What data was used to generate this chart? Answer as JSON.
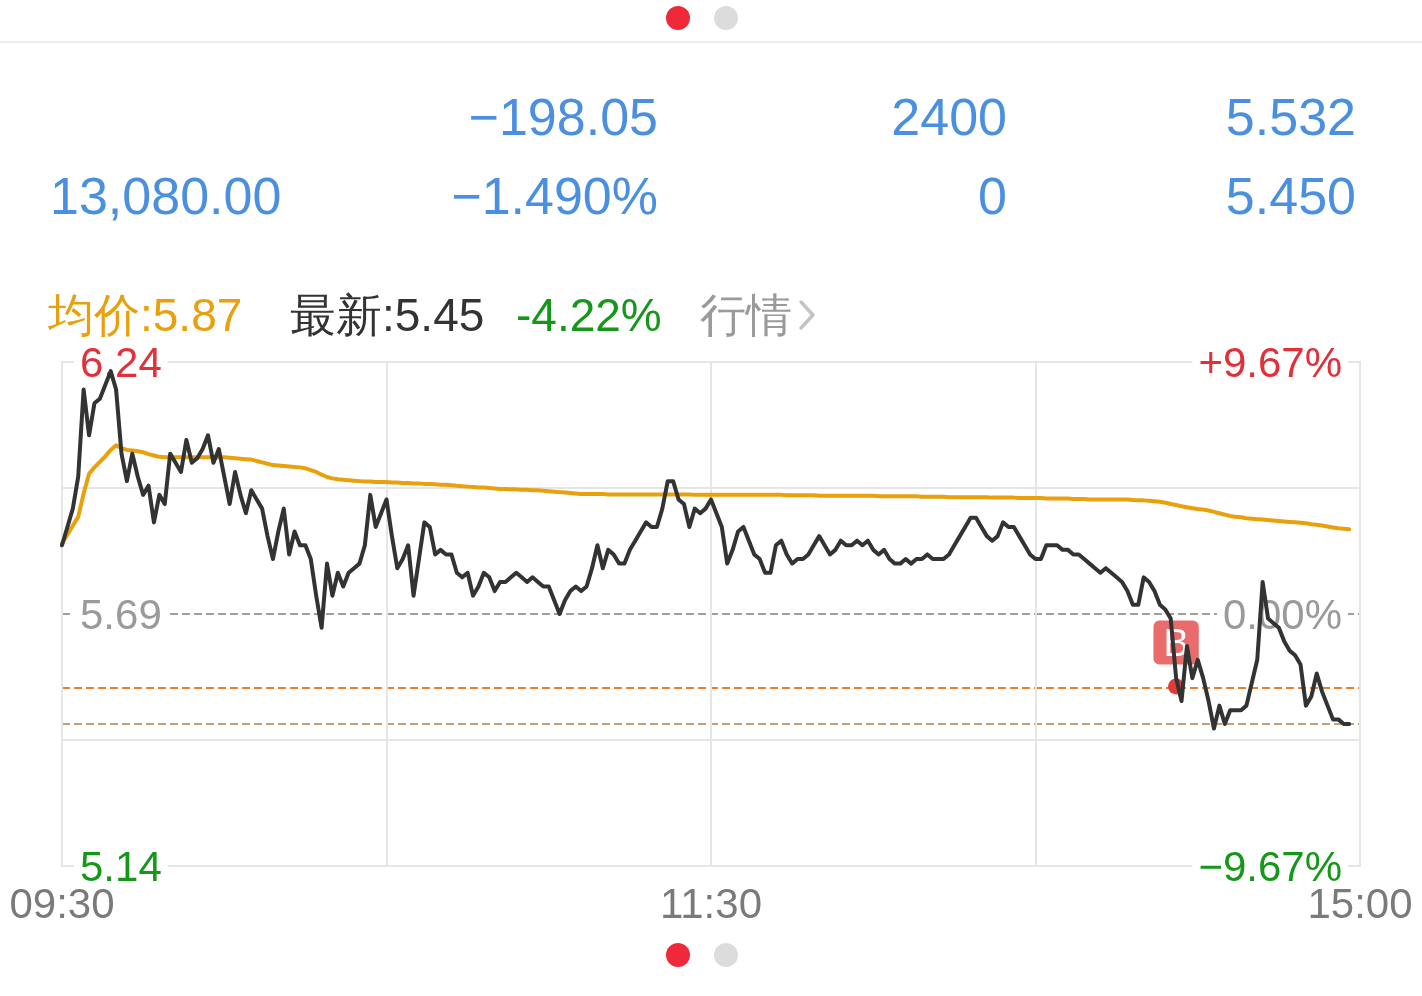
{
  "chart_data": {
    "type": "line",
    "annotations": [
      "−198.05",
      "2400",
      "5.532",
      "13,080.00",
      "−1.490%",
      "0",
      "5.450",
      "均价:5.87",
      "最新:5.45",
      "-4.22%",
      "行情",
      {
        "text": "B",
        "y": 5.532
      }
    ],
    "categories": [
      "09:30",
      null,
      null,
      null,
      null,
      null,
      null,
      null,
      null,
      null,
      null,
      null,
      null,
      null,
      null,
      null,
      null,
      null,
      null,
      null,
      null,
      null,
      null,
      null,
      null,
      null,
      null,
      null,
      null,
      null,
      null,
      null,
      null,
      null,
      null,
      null,
      null,
      null,
      null,
      null,
      null,
      null,
      null,
      null,
      null,
      null,
      null,
      null,
      null,
      null,
      null,
      null,
      null,
      null,
      null,
      null,
      null,
      null,
      null,
      null,
      null,
      null,
      null,
      null,
      null,
      null,
      null,
      null,
      null,
      null,
      null,
      null,
      null,
      null,
      null,
      null,
      null,
      null,
      null,
      null,
      null,
      null,
      null,
      null,
      null,
      null,
      null,
      null,
      null,
      null,
      null,
      null,
      null,
      null,
      null,
      null,
      null,
      null,
      null,
      null,
      null,
      null,
      null,
      null,
      null,
      null,
      null,
      null,
      null,
      null,
      null,
      null,
      null,
      null,
      null,
      null,
      null,
      null,
      null,
      null,
      "11:30",
      null,
      null,
      null,
      null,
      null,
      null,
      null,
      null,
      null,
      null,
      null,
      null,
      null,
      null,
      null,
      null,
      null,
      null,
      null,
      null,
      null,
      null,
      null,
      null,
      null,
      null,
      null,
      null,
      null,
      null,
      null,
      null,
      null,
      null,
      null,
      null,
      null,
      null,
      null,
      null,
      null,
      null,
      null,
      null,
      null,
      null,
      null,
      null,
      null,
      null,
      null,
      null,
      null,
      null,
      null,
      null,
      null,
      null,
      null,
      null,
      null,
      null,
      null,
      null,
      null,
      null,
      null,
      null,
      null,
      null,
      null,
      null,
      null,
      null,
      null,
      null,
      null,
      null,
      null,
      null,
      null,
      null,
      null,
      null,
      null,
      null,
      null,
      null,
      null,
      null,
      null,
      null,
      null,
      null,
      null,
      null,
      null,
      null,
      null,
      null,
      null,
      null,
      null,
      null,
      null,
      null,
      null,
      null,
      null,
      null,
      null,
      null,
      null,
      null,
      null,
      null,
      null,
      null,
      null,
      "15:00"
    ],
    "ylim": [
      5.14,
      6.24
    ],
    "yticks": [
      5.14,
      {
        "value": 5.415,
        "label": null
      },
      5.69,
      {
        "value": 5.965,
        "label": null
      },
      6.24
    ],
    "y2lim": [
      -9.67,
      9.67
    ],
    "y2ticks": [
      {
        "value": -9.67,
        "label": "−9.67%"
      },
      {
        "value": 0,
        "label": "0.00%"
      },
      {
        "value": 9.67,
        "label": "+9.67%"
      }
    ],
    "series": [
      {
        "color": "#333333",
        "values": [
          5.84,
          5.88,
          5.92,
          5.99,
          6.18,
          6.08,
          6.15,
          6.16,
          6.19,
          6.22,
          6.18,
          6.04,
          5.98,
          6.04,
          5.99,
          5.95,
          5.97,
          5.89,
          5.95,
          5.93,
          6.04,
          6.02,
          6.0,
          6.07,
          6.02,
          6.03,
          6.05,
          6.08,
          6.02,
          6.05,
          5.99,
          5.93,
          6.0,
          5.95,
          5.91,
          5.96,
          5.94,
          5.92,
          5.86,
          5.81,
          5.87,
          5.92,
          5.82,
          5.87,
          5.84,
          5.84,
          5.81,
          5.73,
          5.66,
          5.8,
          5.73,
          5.78,
          5.75,
          5.78,
          5.79,
          5.8,
          5.84,
          5.95,
          5.88,
          5.91,
          5.94,
          5.86,
          5.79,
          5.81,
          5.84,
          5.73,
          5.81,
          5.89,
          5.88,
          5.82,
          5.83,
          5.82,
          5.82,
          5.78,
          5.77,
          5.78,
          5.73,
          5.75,
          5.78,
          5.77,
          5.74,
          5.76,
          5.76,
          5.77,
          5.78,
          5.77,
          5.76,
          5.77,
          5.76,
          5.75,
          5.75,
          5.72,
          5.69,
          5.72,
          5.74,
          5.75,
          5.74,
          5.75,
          5.79,
          5.84,
          5.79,
          5.83,
          5.82,
          5.8,
          5.8,
          5.83,
          5.85,
          5.87,
          5.89,
          5.88,
          5.88,
          5.92,
          5.98,
          5.98,
          5.94,
          5.93,
          5.88,
          5.92,
          5.91,
          5.92,
          5.94,
          5.91,
          5.88,
          5.8,
          5.83,
          5.87,
          5.88,
          5.85,
          5.82,
          5.81,
          5.78,
          5.78,
          5.84,
          5.85,
          5.82,
          5.8,
          5.81,
          5.81,
          5.82,
          5.84,
          5.86,
          5.84,
          5.82,
          5.83,
          5.85,
          5.84,
          5.84,
          5.85,
          5.84,
          5.85,
          5.83,
          5.82,
          5.83,
          5.81,
          5.8,
          5.8,
          5.81,
          5.8,
          5.81,
          5.81,
          5.82,
          5.81,
          5.81,
          5.81,
          5.82,
          5.84,
          5.86,
          5.88,
          5.9,
          5.9,
          5.88,
          5.86,
          5.85,
          5.86,
          5.89,
          5.88,
          5.88,
          5.86,
          5.84,
          5.82,
          5.81,
          5.81,
          5.84,
          5.84,
          5.84,
          5.83,
          5.83,
          5.82,
          5.82,
          5.81,
          5.8,
          5.79,
          5.78,
          5.79,
          5.78,
          5.77,
          5.76,
          5.74,
          5.71,
          5.71,
          5.77,
          5.76,
          5.74,
          5.71,
          5.7,
          5.68,
          5.55,
          5.5,
          5.62,
          5.55,
          5.59,
          5.55,
          5.5,
          5.44,
          5.49,
          5.45,
          5.48,
          5.48,
          5.48,
          5.49,
          5.54,
          5.59,
          5.76,
          5.68,
          5.67,
          5.66,
          5.63,
          5.61,
          5.6,
          5.58,
          5.49,
          5.51,
          5.56,
          5.52,
          5.49,
          5.46,
          5.46,
          5.45,
          5.45,
          null,
          null
        ]
      },
      {
        "color": "#e8a00c",
        "values": [
          5.844,
          5.863,
          5.883,
          5.902,
          5.953,
          5.996,
          6.01,
          6.022,
          6.034,
          6.048,
          6.058,
          6.052,
          6.048,
          6.047,
          6.045,
          6.043,
          6.039,
          6.036,
          6.033,
          6.032,
          6.032,
          6.032,
          6.032,
          6.032,
          6.032,
          6.032,
          6.032,
          6.032,
          6.032,
          6.032,
          6.032,
          6.031,
          6.03,
          6.029,
          6.028,
          6.027,
          6.024,
          6.021,
          6.018,
          6.015,
          6.014,
          6.013,
          6.012,
          6.011,
          6.01,
          6.008,
          6.004,
          6.0,
          5.994,
          5.989,
          5.986,
          5.984,
          5.983,
          5.982,
          5.981,
          5.98,
          5.979,
          5.979,
          5.978,
          5.978,
          5.978,
          5.977,
          5.977,
          5.976,
          5.976,
          5.975,
          5.975,
          5.974,
          5.974,
          5.973,
          5.972,
          5.972,
          5.971,
          5.97,
          5.969,
          5.968,
          5.967,
          5.966,
          5.966,
          5.965,
          5.964,
          5.963,
          5.963,
          5.962,
          5.962,
          5.961,
          5.961,
          5.96,
          5.96,
          5.959,
          5.958,
          5.957,
          5.956,
          5.955,
          5.954,
          5.953,
          5.952,
          5.952,
          5.952,
          5.952,
          5.952,
          5.951,
          5.951,
          5.951,
          5.951,
          5.951,
          5.951,
          5.951,
          5.951,
          5.951,
          5.951,
          5.951,
          5.951,
          5.951,
          5.951,
          5.951,
          5.951,
          5.95,
          5.95,
          5.95,
          5.95,
          5.95,
          5.95,
          5.95,
          5.95,
          5.95,
          5.95,
          5.95,
          5.95,
          5.95,
          5.95,
          5.95,
          5.95,
          5.95,
          5.949,
          5.949,
          5.949,
          5.949,
          5.949,
          5.949,
          5.948,
          5.948,
          5.948,
          5.948,
          5.948,
          5.948,
          5.948,
          5.948,
          5.948,
          5.948,
          5.948,
          5.947,
          5.947,
          5.947,
          5.947,
          5.947,
          5.947,
          5.947,
          5.947,
          5.946,
          5.946,
          5.946,
          5.946,
          5.946,
          5.945,
          5.945,
          5.945,
          5.945,
          5.945,
          5.945,
          5.945,
          5.945,
          5.944,
          5.944,
          5.944,
          5.944,
          5.944,
          5.943,
          5.943,
          5.943,
          5.943,
          5.943,
          5.942,
          5.942,
          5.942,
          5.942,
          5.942,
          5.941,
          5.941,
          5.941,
          5.94,
          5.94,
          5.94,
          5.94,
          5.94,
          5.94,
          5.94,
          5.94,
          5.939,
          5.938,
          5.938,
          5.937,
          5.936,
          5.935,
          5.933,
          5.93,
          5.928,
          5.925,
          5.923,
          5.921,
          5.919,
          5.918,
          5.916,
          5.913,
          5.91,
          5.907,
          5.904,
          5.902,
          5.901,
          5.899,
          5.898,
          5.897,
          5.896,
          5.895,
          5.894,
          5.893,
          5.892,
          5.891,
          5.89,
          5.889,
          5.888,
          5.886,
          5.885,
          5.883,
          5.881,
          5.879,
          5.877,
          5.876,
          5.875,
          null,
          null
        ]
      }
    ],
    "ref_lines": [
      {
        "axis": "y",
        "value": 5.69,
        "color": "#9e9e9e",
        "line_style": "dashed"
      },
      {
        "axis": "y",
        "value": 5.532,
        "color": "#e8822e",
        "line_style": "dashed"
      },
      {
        "axis": "y",
        "value": 5.45,
        "color": "#c2a27a",
        "line_style": "dashed"
      }
    ],
    "grid": true,
    "marker": "none",
    "line_style": "solid"
  }
}
